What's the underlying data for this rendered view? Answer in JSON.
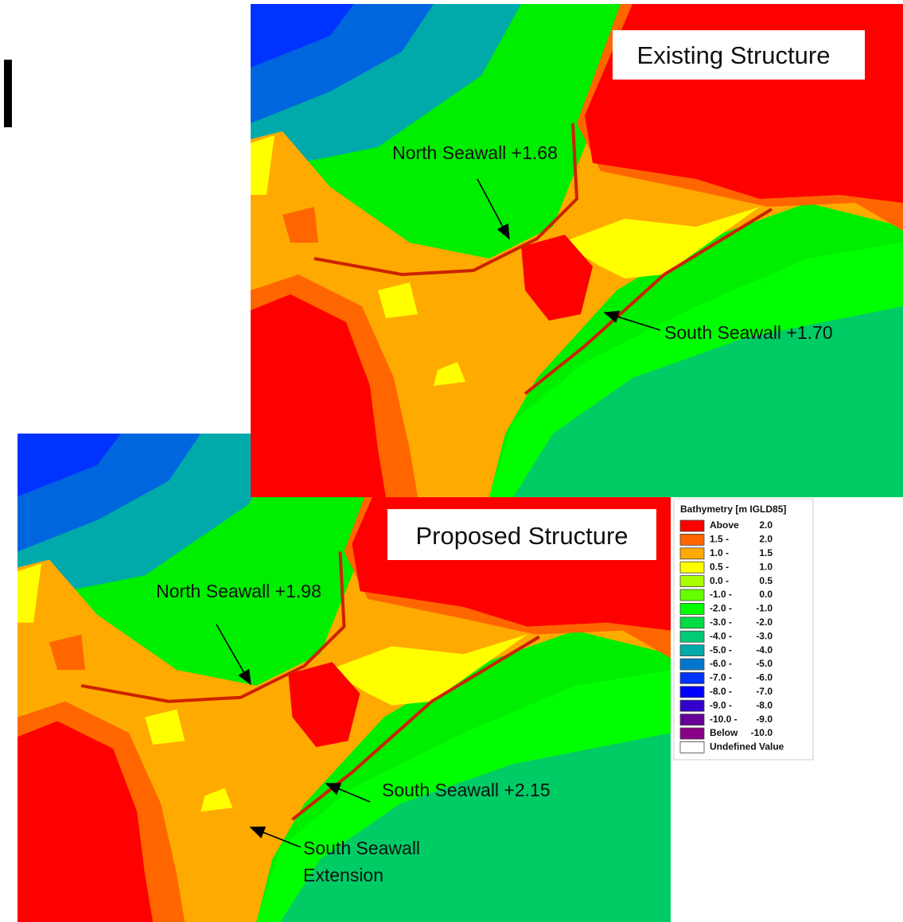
{
  "panels": {
    "existing": {
      "title": "Existing Structure",
      "north_label": "North Seawall +1.68",
      "south_label": "South Seawall +1.70"
    },
    "proposed": {
      "title": "Proposed Structure",
      "north_label": "North Seawall +1.98",
      "south_label": "South Seawall +2.15",
      "extension_label": [
        "South Seawall",
        "Extension"
      ]
    }
  },
  "legend": {
    "title": "Bathymetry [m IGLD85]",
    "items": [
      {
        "from": "Above",
        "to": "2.0",
        "color": "#ff0000"
      },
      {
        "from": "1.5 -",
        "to": "2.0",
        "color": "#ff6600"
      },
      {
        "from": "1.0 -",
        "to": "1.5",
        "color": "#ffaa00"
      },
      {
        "from": "0.5 -",
        "to": "1.0",
        "color": "#ffff00"
      },
      {
        "from": "0.0 -",
        "to": "0.5",
        "color": "#aaff00"
      },
      {
        "from": "-1.0 -",
        "to": "0.0",
        "color": "#66ff00"
      },
      {
        "from": "-2.0 -",
        "to": "-1.0",
        "color": "#00ff00"
      },
      {
        "from": "-3.0 -",
        "to": "-2.0",
        "color": "#00dd44"
      },
      {
        "from": "-4.0 -",
        "to": "-3.0",
        "color": "#00cc77"
      },
      {
        "from": "-5.0 -",
        "to": "-4.0",
        "color": "#00aaaa"
      },
      {
        "from": "-6.0 -",
        "to": "-5.0",
        "color": "#0077cc"
      },
      {
        "from": "-7.0 -",
        "to": "-6.0",
        "color": "#0033ff"
      },
      {
        "from": "-8.0 -",
        "to": "-7.0",
        "color": "#0000ff"
      },
      {
        "from": "-9.0 -",
        "to": "-8.0",
        "color": "#3300cc"
      },
      {
        "from": "-10.0 -",
        "to": "-9.0",
        "color": "#660099"
      },
      {
        "from": "Below",
        "to": "-10.0",
        "color": "#880088"
      },
      {
        "from": "Undefined Value",
        "color": "#ffffff"
      }
    ]
  }
}
